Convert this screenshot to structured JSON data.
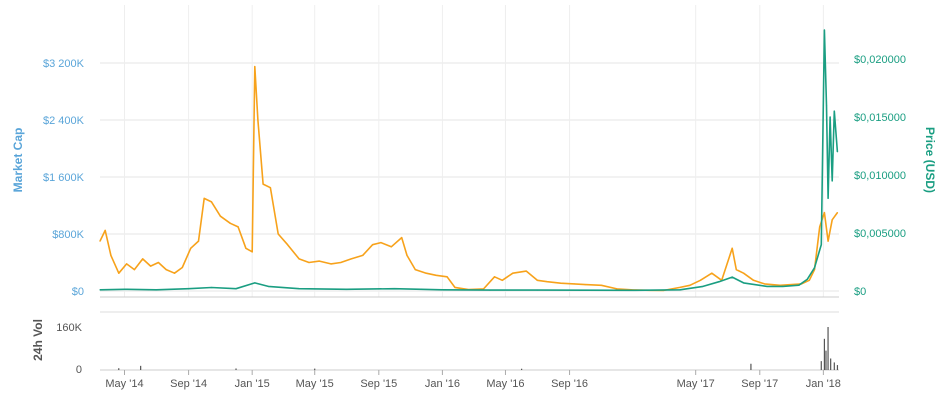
{
  "chart_data": {
    "type": "line",
    "x_range": [
      "2014-03-15",
      "2018-01-31"
    ],
    "x_ticks": [
      "May '14",
      "Sep '14",
      "Jan '15",
      "May '15",
      "Sep '15",
      "Jan '16",
      "May '16",
      "Sep '16",
      "May '17",
      "Sep '17",
      "Jan '18"
    ],
    "x_tick_dates": [
      "2014-05-01",
      "2014-09-01",
      "2015-01-01",
      "2015-05-01",
      "2015-09-01",
      "2016-01-01",
      "2016-05-01",
      "2016-09-01",
      "2017-05-01",
      "2017-09-01",
      "2018-01-01"
    ],
    "left_axis": {
      "title": "Market Cap",
      "ticks": [
        "$0",
        "$800K",
        "$1 600K",
        "$2 400K",
        "$3 200K"
      ],
      "tick_values": [
        0,
        800000,
        1600000,
        2400000,
        3200000
      ],
      "ylim": [
        0,
        3200000
      ],
      "color": "#5aa5d9"
    },
    "right_axis": {
      "title": "Price (USD)",
      "ticks": [
        "$0",
        "$0,005000",
        "$0,010000",
        "$0,015000",
        "$0,020000"
      ],
      "tick_values": [
        0,
        0.005,
        0.01,
        0.015,
        0.02
      ],
      "ylim": [
        0,
        0.02
      ],
      "color": "#1a9e82"
    },
    "volume_axis": {
      "title": "24h Vol",
      "ticks": [
        "0",
        "160K"
      ],
      "tick_values": [
        0,
        160000
      ],
      "ylim": [
        0,
        160000
      ]
    },
    "series": [
      {
        "key": "market_cap",
        "axis": "left",
        "color": "#f7a21b",
        "points": [
          [
            "2014-03-15",
            700000
          ],
          [
            "2014-03-25",
            850000
          ],
          [
            "2014-04-05",
            500000
          ],
          [
            "2014-04-20",
            250000
          ],
          [
            "2014-05-05",
            380000
          ],
          [
            "2014-05-20",
            300000
          ],
          [
            "2014-06-05",
            450000
          ],
          [
            "2014-06-20",
            350000
          ],
          [
            "2014-07-05",
            400000
          ],
          [
            "2014-07-20",
            300000
          ],
          [
            "2014-08-05",
            250000
          ],
          [
            "2014-08-20",
            330000
          ],
          [
            "2014-09-05",
            600000
          ],
          [
            "2014-09-20",
            700000
          ],
          [
            "2014-10-01",
            1300000
          ],
          [
            "2014-10-15",
            1250000
          ],
          [
            "2014-11-01",
            1050000
          ],
          [
            "2014-11-20",
            950000
          ],
          [
            "2014-12-05",
            900000
          ],
          [
            "2014-12-20",
            600000
          ],
          [
            "2015-01-01",
            550000
          ],
          [
            "2015-01-06",
            3150000
          ],
          [
            "2015-01-12",
            2400000
          ],
          [
            "2015-01-22",
            1500000
          ],
          [
            "2015-02-05",
            1450000
          ],
          [
            "2015-02-20",
            800000
          ],
          [
            "2015-03-10",
            650000
          ],
          [
            "2015-04-01",
            450000
          ],
          [
            "2015-04-20",
            400000
          ],
          [
            "2015-05-10",
            420000
          ],
          [
            "2015-06-01",
            380000
          ],
          [
            "2015-06-20",
            400000
          ],
          [
            "2015-07-10",
            450000
          ],
          [
            "2015-08-01",
            500000
          ],
          [
            "2015-08-20",
            650000
          ],
          [
            "2015-09-05",
            680000
          ],
          [
            "2015-09-25",
            620000
          ],
          [
            "2015-10-15",
            750000
          ],
          [
            "2015-10-25",
            500000
          ],
          [
            "2015-11-10",
            300000
          ],
          [
            "2015-12-01",
            250000
          ],
          [
            "2015-12-20",
            220000
          ],
          [
            "2016-01-10",
            200000
          ],
          [
            "2016-01-25",
            50000
          ],
          [
            "2016-02-20",
            20000
          ],
          [
            "2016-03-20",
            30000
          ],
          [
            "2016-04-10",
            200000
          ],
          [
            "2016-04-25",
            150000
          ],
          [
            "2016-05-15",
            250000
          ],
          [
            "2016-06-10",
            280000
          ],
          [
            "2016-07-01",
            150000
          ],
          [
            "2016-07-20",
            130000
          ],
          [
            "2016-08-15",
            110000
          ],
          [
            "2016-09-10",
            100000
          ],
          [
            "2016-10-01",
            90000
          ],
          [
            "2016-11-01",
            80000
          ],
          [
            "2016-12-01",
            30000
          ],
          [
            "2017-01-01",
            15000
          ],
          [
            "2017-02-01",
            10000
          ],
          [
            "2017-03-01",
            8000
          ],
          [
            "2017-04-01",
            50000
          ],
          [
            "2017-04-20",
            80000
          ],
          [
            "2017-05-10",
            150000
          ],
          [
            "2017-06-01",
            250000
          ],
          [
            "2017-06-20",
            150000
          ],
          [
            "2017-07-10",
            600000
          ],
          [
            "2017-07-18",
            300000
          ],
          [
            "2017-08-01",
            250000
          ],
          [
            "2017-08-20",
            150000
          ],
          [
            "2017-09-10",
            100000
          ],
          [
            "2017-10-10",
            80000
          ],
          [
            "2017-11-01",
            90000
          ],
          [
            "2017-11-20",
            100000
          ],
          [
            "2017-12-05",
            150000
          ],
          [
            "2017-12-15",
            300000
          ],
          [
            "2017-12-25",
            900000
          ],
          [
            "2018-01-03",
            1100000
          ],
          [
            "2018-01-10",
            700000
          ],
          [
            "2018-01-18",
            1000000
          ],
          [
            "2018-01-28",
            1100000
          ]
        ]
      },
      {
        "key": "price",
        "axis": "right",
        "color": "#1a9e82",
        "points": [
          [
            "2014-03-15",
            0.0001
          ],
          [
            "2014-05-01",
            0.00015
          ],
          [
            "2014-07-01",
            0.0001
          ],
          [
            "2014-09-01",
            0.0002
          ],
          [
            "2014-10-15",
            0.0003
          ],
          [
            "2014-12-01",
            0.0002
          ],
          [
            "2015-01-06",
            0.0007
          ],
          [
            "2015-02-01",
            0.0004
          ],
          [
            "2015-04-01",
            0.0002
          ],
          [
            "2015-07-01",
            0.00015
          ],
          [
            "2015-10-01",
            0.0002
          ],
          [
            "2016-01-01",
            0.0001
          ],
          [
            "2016-04-01",
            8e-05
          ],
          [
            "2016-07-01",
            8e-05
          ],
          [
            "2016-10-01",
            7e-05
          ],
          [
            "2017-01-01",
            6e-05
          ],
          [
            "2017-04-01",
            0.0001
          ],
          [
            "2017-05-15",
            0.0004
          ],
          [
            "2017-06-15",
            0.0008
          ],
          [
            "2017-07-10",
            0.0012
          ],
          [
            "2017-08-01",
            0.0007
          ],
          [
            "2017-09-15",
            0.0004
          ],
          [
            "2017-10-15",
            0.0004
          ],
          [
            "2017-11-15",
            0.0005
          ],
          [
            "2017-12-01",
            0.001
          ],
          [
            "2017-12-15",
            0.002
          ],
          [
            "2017-12-28",
            0.004
          ],
          [
            "2018-01-03",
            0.0225
          ],
          [
            "2018-01-07",
            0.016
          ],
          [
            "2018-01-10",
            0.008
          ],
          [
            "2018-01-14",
            0.015
          ],
          [
            "2018-01-18",
            0.0095
          ],
          [
            "2018-01-22",
            0.0155
          ],
          [
            "2018-01-28",
            0.012
          ]
        ]
      },
      {
        "key": "volume",
        "axis": "volume",
        "color": "#555555",
        "points": [
          [
            "2014-04-20",
            3000
          ],
          [
            "2014-06-01",
            12000
          ],
          [
            "2014-12-01",
            2000
          ],
          [
            "2015-05-01",
            1500
          ],
          [
            "2016-06-01",
            1000
          ],
          [
            "2017-08-15",
            20000
          ],
          [
            "2017-12-28",
            30000
          ],
          [
            "2018-01-03",
            115000
          ],
          [
            "2018-01-06",
            70000
          ],
          [
            "2018-01-10",
            160000
          ],
          [
            "2018-01-15",
            40000
          ],
          [
            "2018-01-22",
            25000
          ],
          [
            "2018-01-28",
            15000
          ]
        ]
      }
    ]
  }
}
